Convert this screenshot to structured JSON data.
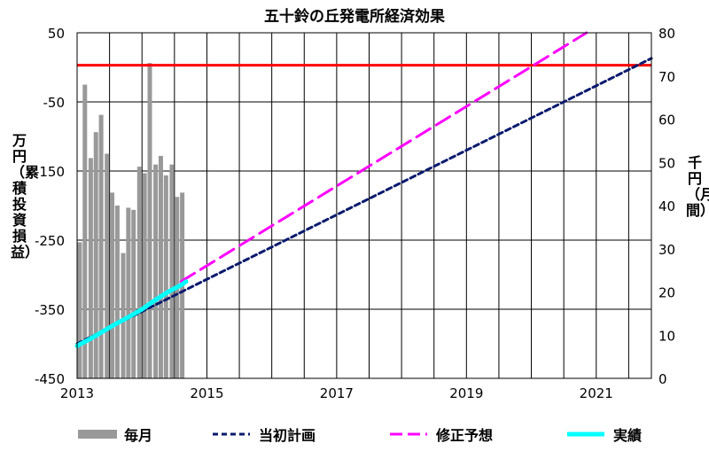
{
  "colors": {
    "monthly": "#999999",
    "plan": "#0a1a6e",
    "revised": "#ff00ff",
    "actual": "#00ffff",
    "breakeven": "#ff0000",
    "grid": "#000000"
  },
  "legend": {
    "monthly": "毎月",
    "plan": "当初計画",
    "revised": "修正予想",
    "actual": "実績"
  },
  "chart_data": {
    "type": "bar+line",
    "title": "五十鈴の丘発電所経済効果",
    "ylabel_left": "万円（累積投資損益）",
    "ylabel_right": "千円（月間）",
    "xlim": [
      2013,
      2021.85
    ],
    "ylim_left": [
      -450,
      50
    ],
    "ylim_right": [
      0,
      80
    ],
    "x_ticks": [
      2013,
      2015,
      2017,
      2019,
      2021
    ],
    "y_ticks_left": [
      50,
      -50,
      -150,
      -250,
      -350,
      -450
    ],
    "y_ticks_right": [
      80,
      70,
      60,
      50,
      40,
      30,
      20,
      10,
      0
    ],
    "breakeven_line": {
      "axis": "left",
      "y": 3
    },
    "monthly_bars_axis": "right",
    "monthly_bars": {
      "x": [
        2013.04,
        2013.12,
        2013.21,
        2013.29,
        2013.37,
        2013.46,
        2013.54,
        2013.62,
        2013.71,
        2013.79,
        2013.87,
        2013.96,
        2014.04,
        2014.12,
        2014.21,
        2014.29,
        2014.37,
        2014.46,
        2014.54,
        2014.62,
        2014.71
      ],
      "values": [
        31.5,
        68,
        51,
        57,
        61,
        52,
        43,
        40,
        29,
        39.5,
        39,
        49,
        47.5,
        73,
        49.5,
        51.5,
        47,
        49.5,
        42,
        43,
        0
      ]
    },
    "series": [
      {
        "name": "当初計画",
        "axis": "left",
        "style": "dashed",
        "x": [
          2013,
          2021.85
        ],
        "y": [
          -400,
          13
        ]
      },
      {
        "name": "修正予想",
        "axis": "left",
        "style": "long-dashed",
        "x": [
          2014.6,
          2020.85
        ],
        "y": [
          -310,
          50
        ]
      },
      {
        "name": "実績",
        "axis": "left",
        "style": "solid",
        "x": [
          2013.0,
          2013.2,
          2013.4,
          2013.6,
          2013.8,
          2014.0,
          2014.2,
          2014.4,
          2014.6,
          2014.68
        ],
        "y": [
          -403,
          -393,
          -382,
          -371,
          -361,
          -350,
          -337,
          -325,
          -315,
          -310
        ]
      }
    ]
  }
}
